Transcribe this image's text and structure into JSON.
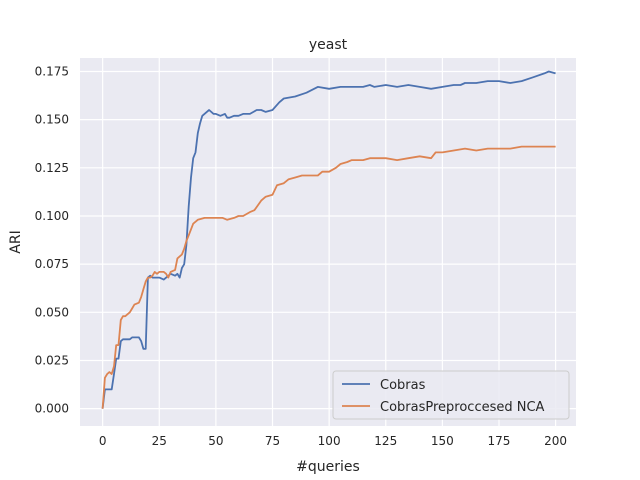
{
  "chart_data": {
    "type": "line",
    "title": "yeast",
    "xlabel": "#queries",
    "ylabel": "ARI",
    "xlim": [
      -10,
      209
    ],
    "ylim": [
      -0.009,
      0.182
    ],
    "xticks": [
      0,
      25,
      50,
      75,
      100,
      125,
      150,
      175,
      200
    ],
    "yticks": [
      0.0,
      0.025,
      0.05,
      0.075,
      0.1,
      0.125,
      0.15,
      0.175
    ],
    "ytick_labels": [
      "0.000",
      "0.025",
      "0.050",
      "0.075",
      "0.100",
      "0.125",
      "0.150",
      "0.175"
    ],
    "grid": true,
    "legend_position": "lower-right",
    "background": "#eaeaf2",
    "series": [
      {
        "name": "Cobras",
        "color": "#4c72b0",
        "points": [
          [
            0,
            0.0
          ],
          [
            1,
            0.01
          ],
          [
            3,
            0.01
          ],
          [
            4,
            0.01
          ],
          [
            5,
            0.018
          ],
          [
            6,
            0.026
          ],
          [
            7,
            0.026
          ],
          [
            8,
            0.035
          ],
          [
            9,
            0.036
          ],
          [
            12,
            0.036
          ],
          [
            13,
            0.037
          ],
          [
            16,
            0.037
          ],
          [
            17,
            0.035
          ],
          [
            18,
            0.031
          ],
          [
            19,
            0.031
          ],
          [
            20,
            0.068
          ],
          [
            21,
            0.069
          ],
          [
            22,
            0.068
          ],
          [
            25,
            0.068
          ],
          [
            27,
            0.067
          ],
          [
            30,
            0.07
          ],
          [
            32,
            0.069
          ],
          [
            33,
            0.07
          ],
          [
            34,
            0.068
          ],
          [
            35,
            0.073
          ],
          [
            36,
            0.075
          ],
          [
            37,
            0.085
          ],
          [
            38,
            0.105
          ],
          [
            39,
            0.12
          ],
          [
            40,
            0.13
          ],
          [
            41,
            0.133
          ],
          [
            42,
            0.143
          ],
          [
            43,
            0.148
          ],
          [
            44,
            0.152
          ],
          [
            46,
            0.154
          ],
          [
            47,
            0.155
          ],
          [
            49,
            0.153
          ],
          [
            50,
            0.153
          ],
          [
            52,
            0.152
          ],
          [
            54,
            0.153
          ],
          [
            55,
            0.151
          ],
          [
            56,
            0.151
          ],
          [
            58,
            0.152
          ],
          [
            60,
            0.152
          ],
          [
            62,
            0.153
          ],
          [
            65,
            0.153
          ],
          [
            68,
            0.155
          ],
          [
            70,
            0.155
          ],
          [
            72,
            0.154
          ],
          [
            75,
            0.155
          ],
          [
            78,
            0.159
          ],
          [
            80,
            0.161
          ],
          [
            85,
            0.162
          ],
          [
            90,
            0.164
          ],
          [
            95,
            0.167
          ],
          [
            100,
            0.166
          ],
          [
            105,
            0.167
          ],
          [
            110,
            0.167
          ],
          [
            115,
            0.167
          ],
          [
            118,
            0.168
          ],
          [
            120,
            0.167
          ],
          [
            125,
            0.168
          ],
          [
            130,
            0.167
          ],
          [
            135,
            0.168
          ],
          [
            140,
            0.167
          ],
          [
            145,
            0.166
          ],
          [
            150,
            0.167
          ],
          [
            155,
            0.168
          ],
          [
            158,
            0.168
          ],
          [
            160,
            0.169
          ],
          [
            165,
            0.169
          ],
          [
            170,
            0.17
          ],
          [
            175,
            0.17
          ],
          [
            180,
            0.169
          ],
          [
            185,
            0.17
          ],
          [
            190,
            0.172
          ],
          [
            195,
            0.174
          ],
          [
            197,
            0.175
          ],
          [
            200,
            0.174
          ]
        ]
      },
      {
        "name": "CobrasPreproccesed NCA",
        "color": "#dd8452",
        "points": [
          [
            0,
            0.0
          ],
          [
            1,
            0.016
          ],
          [
            2,
            0.018
          ],
          [
            3,
            0.019
          ],
          [
            4,
            0.018
          ],
          [
            5,
            0.022
          ],
          [
            6,
            0.033
          ],
          [
            7,
            0.033
          ],
          [
            8,
            0.046
          ],
          [
            9,
            0.048
          ],
          [
            10,
            0.048
          ],
          [
            12,
            0.05
          ],
          [
            13,
            0.052
          ],
          [
            14,
            0.054
          ],
          [
            16,
            0.055
          ],
          [
            17,
            0.058
          ],
          [
            18,
            0.062
          ],
          [
            19,
            0.066
          ],
          [
            20,
            0.068
          ],
          [
            21,
            0.068
          ],
          [
            22,
            0.069
          ],
          [
            23,
            0.071
          ],
          [
            24,
            0.07
          ],
          [
            25,
            0.071
          ],
          [
            27,
            0.071
          ],
          [
            28,
            0.07
          ],
          [
            29,
            0.068
          ],
          [
            30,
            0.071
          ],
          [
            32,
            0.072
          ],
          [
            33,
            0.078
          ],
          [
            35,
            0.08
          ],
          [
            36,
            0.083
          ],
          [
            37,
            0.087
          ],
          [
            38,
            0.09
          ],
          [
            40,
            0.096
          ],
          [
            42,
            0.098
          ],
          [
            45,
            0.099
          ],
          [
            50,
            0.099
          ],
          [
            53,
            0.099
          ],
          [
            55,
            0.098
          ],
          [
            58,
            0.099
          ],
          [
            60,
            0.1
          ],
          [
            62,
            0.1
          ],
          [
            65,
            0.102
          ],
          [
            67,
            0.103
          ],
          [
            70,
            0.108
          ],
          [
            72,
            0.11
          ],
          [
            75,
            0.111
          ],
          [
            77,
            0.116
          ],
          [
            80,
            0.117
          ],
          [
            82,
            0.119
          ],
          [
            85,
            0.12
          ],
          [
            88,
            0.121
          ],
          [
            90,
            0.121
          ],
          [
            95,
            0.121
          ],
          [
            97,
            0.123
          ],
          [
            100,
            0.123
          ],
          [
            103,
            0.125
          ],
          [
            105,
            0.127
          ],
          [
            108,
            0.128
          ],
          [
            110,
            0.129
          ],
          [
            115,
            0.129
          ],
          [
            118,
            0.13
          ],
          [
            120,
            0.13
          ],
          [
            125,
            0.13
          ],
          [
            130,
            0.129
          ],
          [
            135,
            0.13
          ],
          [
            140,
            0.131
          ],
          [
            145,
            0.13
          ],
          [
            147,
            0.133
          ],
          [
            150,
            0.133
          ],
          [
            155,
            0.134
          ],
          [
            160,
            0.135
          ],
          [
            165,
            0.134
          ],
          [
            170,
            0.135
          ],
          [
            175,
            0.135
          ],
          [
            180,
            0.135
          ],
          [
            185,
            0.136
          ],
          [
            190,
            0.136
          ],
          [
            195,
            0.136
          ],
          [
            200,
            0.136
          ]
        ]
      }
    ]
  }
}
